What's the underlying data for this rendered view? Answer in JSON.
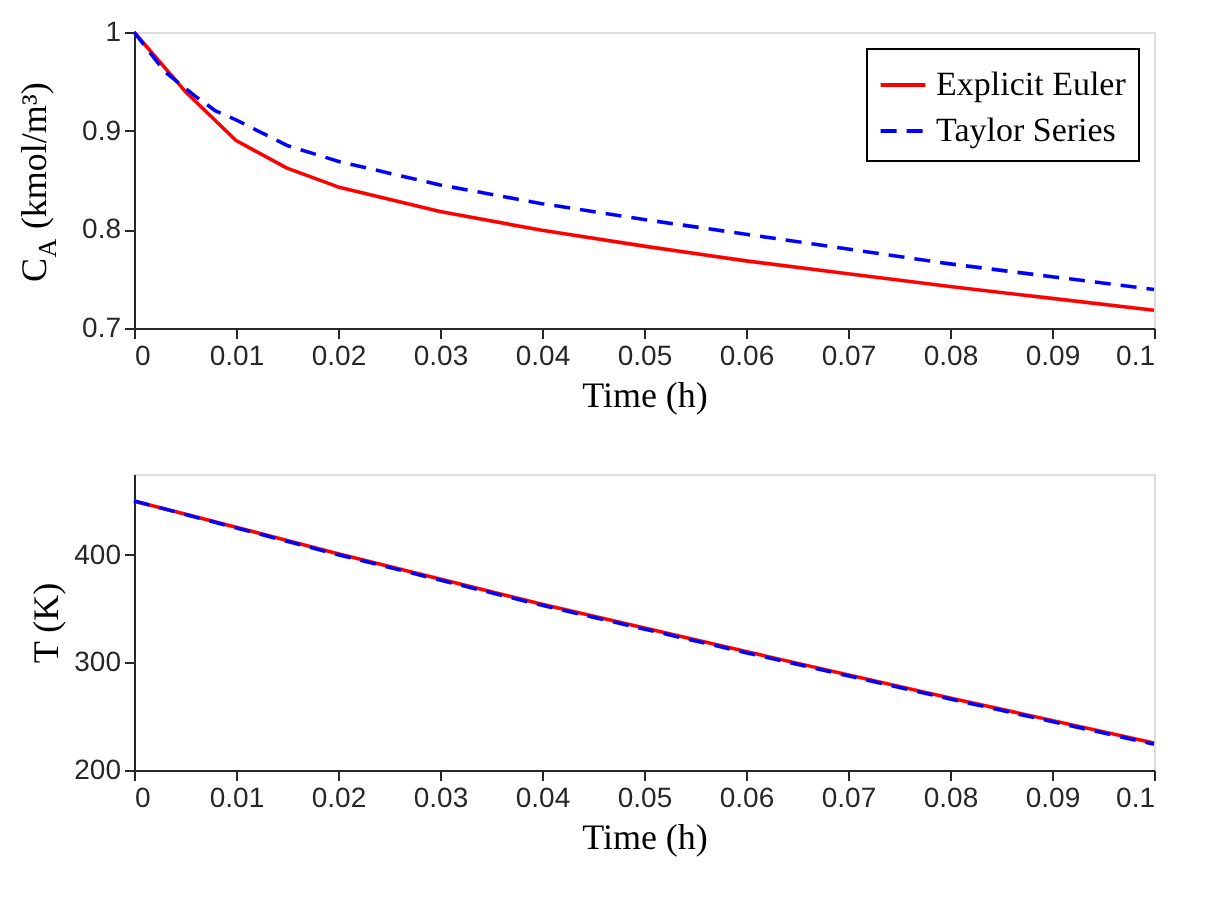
{
  "chart_data": [
    {
      "type": "line",
      "xlabel": "Time (h)",
      "ylabel": "C$_{A}$ (kmol/m³)",
      "xlim": [
        0,
        0.1
      ],
      "ylim": [
        0.7,
        1
      ],
      "xticks": [
        0,
        0.01,
        0.02,
        0.03,
        0.04,
        0.05,
        0.06,
        0.07,
        0.08,
        0.09,
        0.1
      ],
      "yticks": [
        0.7,
        0.8,
        0.9,
        1
      ],
      "grid": false,
      "legend": "top right",
      "marker": "none",
      "series": [
        {
          "name": "Explicit Euler",
          "color": "#ff0000",
          "line_style": "solid",
          "x": [
            0,
            0.005,
            0.01,
            0.015,
            0.02,
            0.03,
            0.04,
            0.05,
            0.06,
            0.07,
            0.08,
            0.09,
            0.1
          ],
          "values": [
            1,
            0.94,
            0.89,
            0.862,
            0.843,
            0.818,
            0.799,
            0.783,
            0.768,
            0.755,
            0.742,
            0.73,
            0.718
          ]
        },
        {
          "name": "Taylor Series",
          "color": "#0000ff",
          "line_style": "dashed",
          "x": [
            0,
            0.003,
            0.006,
            0.008,
            0.01,
            0.015,
            0.02,
            0.03,
            0.04,
            0.05,
            0.06,
            0.07,
            0.08,
            0.09,
            0.1
          ],
          "values": [
            1,
            0.96,
            0.935,
            0.92,
            0.911,
            0.885,
            0.869,
            0.845,
            0.826,
            0.81,
            0.795,
            0.78,
            0.765,
            0.752,
            0.739
          ]
        }
      ]
    },
    {
      "type": "line",
      "xlabel": "Time (h)",
      "ylabel": "T (K)",
      "xlim": [
        0,
        0.1
      ],
      "ylim": [
        200,
        475
      ],
      "xticks": [
        0,
        0.01,
        0.02,
        0.03,
        0.04,
        0.05,
        0.06,
        0.07,
        0.08,
        0.09,
        0.1
      ],
      "yticks": [
        200,
        300,
        400
      ],
      "grid": false,
      "legend": "top right",
      "marker": "none",
      "series": [
        {
          "name": "Explicit Euler",
          "color": "#ff0000",
          "line_style": "solid",
          "x": [
            0,
            0.02,
            0.04,
            0.06,
            0.08,
            0.1
          ],
          "values": [
            450,
            401,
            354,
            310,
            267,
            225
          ]
        },
        {
          "name": "Taylor Series",
          "color": "#0000ff",
          "line_style": "dashed",
          "x": [
            0,
            0.02,
            0.04,
            0.06,
            0.08,
            0.1
          ],
          "values": [
            450,
            400,
            353,
            309,
            266,
            224
          ]
        }
      ]
    }
  ]
}
